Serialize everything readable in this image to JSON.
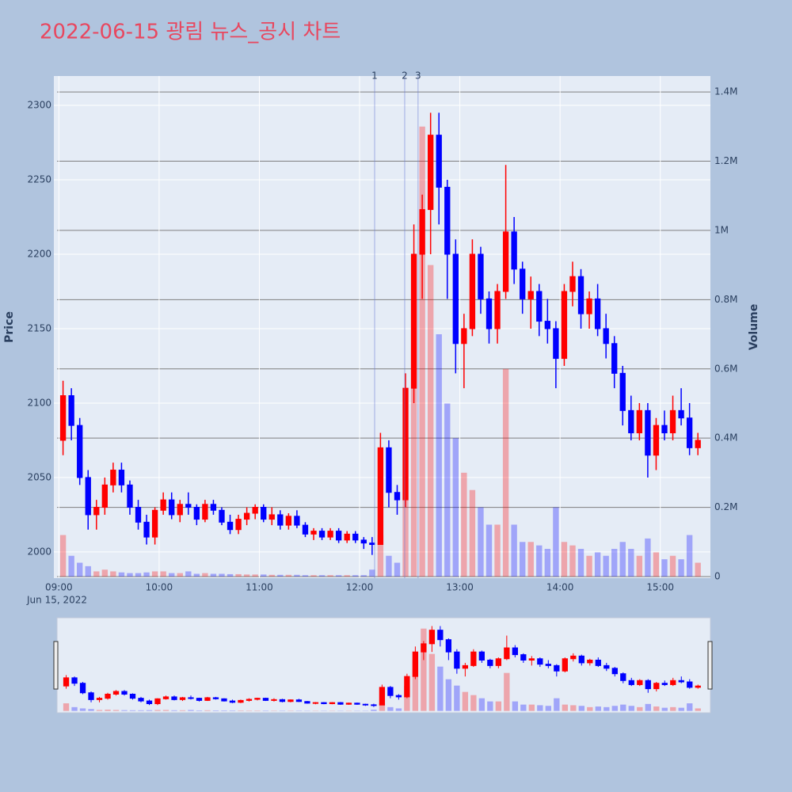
{
  "chart_data": {
    "type": "candlestick",
    "title": "2022-06-15 광림 뉴스_공시 차트",
    "ylabel": "Price",
    "y2label": "Volume",
    "x_date_label": "Jun 15, 2022",
    "colors": {
      "increasing": "#ff0000",
      "decreasing": "#0000ff"
    },
    "xlim": [
      "08:57",
      "15:30"
    ],
    "xticks": [
      "09:00",
      "10:00",
      "11:00",
      "12:00",
      "13:00",
      "14:00",
      "15:00"
    ],
    "ylim": [
      1982.4,
      2319.7
    ],
    "yticks": [
      2000,
      2050,
      2100,
      2150,
      2200,
      2250,
      2300
    ],
    "y2lim": [
      -4600,
      1446000
    ],
    "y2ticks": [
      0,
      {
        "value": 200000,
        "label": "0.2M"
      },
      {
        "value": 400000,
        "label": "0.4M"
      },
      {
        "value": 600000,
        "label": "0.6M"
      },
      {
        "value": 800000,
        "label": "0.8M"
      },
      {
        "value": 1000000,
        "label": "1M"
      },
      {
        "value": 1200000,
        "label": "1.2M"
      },
      {
        "value": 1400000,
        "label": "1.4M"
      }
    ],
    "vlines": [
      {
        "x": "12:09",
        "label": "1"
      },
      {
        "x": "12:27",
        "label": "2"
      },
      {
        "x": "12:35",
        "label": "3"
      }
    ],
    "rangeslider": true,
    "x": [
      "09:00",
      "09:05",
      "09:10",
      "09:15",
      "09:20",
      "09:25",
      "09:30",
      "09:35",
      "09:40",
      "09:45",
      "09:50",
      "09:55",
      "10:00",
      "10:05",
      "10:10",
      "10:15",
      "10:20",
      "10:25",
      "10:30",
      "10:35",
      "10:40",
      "10:45",
      "10:50",
      "10:55",
      "11:00",
      "11:05",
      "11:10",
      "11:15",
      "11:20",
      "11:25",
      "11:30",
      "11:35",
      "11:40",
      "11:45",
      "11:50",
      "11:55",
      "12:00",
      "12:05",
      "12:10",
      "12:15",
      "12:20",
      "12:25",
      "12:30",
      "12:35",
      "12:40",
      "12:45",
      "12:50",
      "12:55",
      "13:00",
      "13:05",
      "13:10",
      "13:15",
      "13:20",
      "13:25",
      "13:30",
      "13:35",
      "13:40",
      "13:45",
      "13:50",
      "13:55",
      "14:00",
      "14:05",
      "14:10",
      "14:15",
      "14:20",
      "14:25",
      "14:30",
      "14:35",
      "14:40",
      "14:45",
      "14:50",
      "14:55",
      "15:00",
      "15:05",
      "15:10",
      "15:15",
      "15:20"
    ],
    "open": [
      2075,
      2105,
      2085,
      2050,
      2025,
      2030,
      2045,
      2055,
      2045,
      2030,
      2020,
      2010,
      2028,
      2035,
      2025,
      2032,
      2030,
      2022,
      2032,
      2028,
      2020,
      2015,
      2022,
      2026,
      2030,
      2022,
      2025,
      2018,
      2024,
      2018,
      2012,
      2014,
      2010,
      2014,
      2008,
      2012,
      2008,
      2006,
      2005,
      2070,
      2040,
      2035,
      2110,
      2200,
      2230,
      2280,
      2245,
      2200,
      2140,
      2150,
      2200,
      2170,
      2150,
      2175,
      2215,
      2190,
      2170,
      2175,
      2155,
      2150,
      2130,
      2175,
      2185,
      2160,
      2170,
      2150,
      2140,
      2120,
      2095,
      2080,
      2095,
      2065,
      2085,
      2080,
      2095,
      2090,
      2070
    ],
    "high": [
      2115,
      2110,
      2090,
      2055,
      2035,
      2050,
      2060,
      2060,
      2048,
      2035,
      2025,
      2030,
      2040,
      2040,
      2035,
      2040,
      2032,
      2035,
      2035,
      2030,
      2025,
      2025,
      2030,
      2032,
      2032,
      2030,
      2028,
      2026,
      2028,
      2020,
      2016,
      2016,
      2016,
      2016,
      2014,
      2014,
      2010,
      2010,
      2080,
      2075,
      2045,
      2120,
      2220,
      2240,
      2295,
      2295,
      2250,
      2210,
      2160,
      2210,
      2205,
      2175,
      2180,
      2260,
      2225,
      2195,
      2185,
      2180,
      2170,
      2155,
      2180,
      2195,
      2190,
      2175,
      2180,
      2160,
      2145,
      2125,
      2105,
      2100,
      2100,
      2090,
      2095,
      2105,
      2110,
      2100,
      2080
    ],
    "low": [
      2065,
      2075,
      2045,
      2015,
      2015,
      2025,
      2040,
      2040,
      2025,
      2015,
      2005,
      2005,
      2025,
      2022,
      2020,
      2025,
      2018,
      2020,
      2025,
      2018,
      2012,
      2012,
      2018,
      2022,
      2020,
      2018,
      2015,
      2015,
      2016,
      2010,
      2008,
      2008,
      2008,
      2006,
      2006,
      2006,
      2002,
      1998,
      2005,
      2030,
      2025,
      2030,
      2100,
      2170,
      2200,
      2220,
      2170,
      2120,
      2110,
      2145,
      2160,
      2140,
      2140,
      2170,
      2180,
      2160,
      2150,
      2145,
      2140,
      2110,
      2125,
      2165,
      2150,
      2150,
      2145,
      2130,
      2110,
      2085,
      2075,
      2075,
      2050,
      2055,
      2075,
      2075,
      2085,
      2065,
      2065
    ],
    "close": [
      2105,
      2085,
      2050,
      2025,
      2030,
      2045,
      2055,
      2045,
      2030,
      2020,
      2010,
      2028,
      2035,
      2025,
      2032,
      2030,
      2022,
      2032,
      2028,
      2020,
      2015,
      2022,
      2026,
      2030,
      2022,
      2025,
      2018,
      2024,
      2018,
      2012,
      2014,
      2010,
      2014,
      2008,
      2012,
      2008,
      2006,
      2005,
      2070,
      2040,
      2035,
      2110,
      2200,
      2230,
      2280,
      2245,
      2200,
      2140,
      2150,
      2200,
      2170,
      2150,
      2175,
      2215,
      2190,
      2170,
      2175,
      2155,
      2150,
      2130,
      2175,
      2185,
      2160,
      2170,
      2150,
      2140,
      2120,
      2095,
      2080,
      2095,
      2065,
      2085,
      2080,
      2095,
      2090,
      2070,
      2075
    ],
    "volume": [
      120000,
      60000,
      40000,
      30000,
      15000,
      20000,
      15000,
      12000,
      10000,
      10000,
      12000,
      15000,
      15000,
      10000,
      10000,
      15000,
      8000,
      10000,
      8000,
      8000,
      7000,
      7000,
      6000,
      6000,
      6000,
      5000,
      5000,
      5000,
      5000,
      4000,
      4000,
      4000,
      4000,
      4000,
      4000,
      4000,
      4000,
      20000,
      120000,
      60000,
      40000,
      400000,
      800000,
      1300000,
      900000,
      700000,
      500000,
      400000,
      300000,
      250000,
      200000,
      150000,
      150000,
      600000,
      150000,
      100000,
      100000,
      90000,
      80000,
      200000,
      100000,
      90000,
      80000,
      60000,
      70000,
      60000,
      80000,
      100000,
      80000,
      60000,
      110000,
      70000,
      50000,
      60000,
      50000,
      120000,
      40000
    ]
  }
}
